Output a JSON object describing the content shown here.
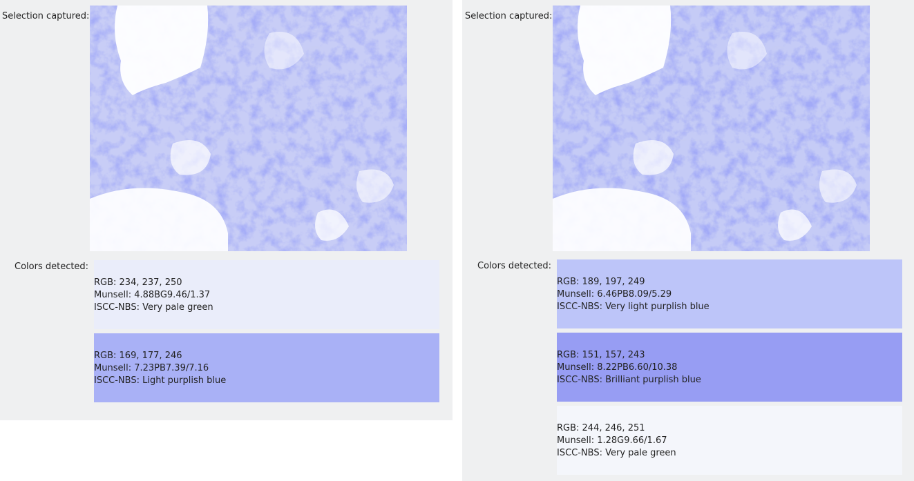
{
  "panels": [
    {
      "selection_label": "Selection captured:",
      "colors_label": "Colors detected:",
      "colors": [
        {
          "bg": "#eaedfa",
          "rgb": "RGB: 234, 237, 250",
          "munsell": "Munsell: 4.88BG9.46/1.37",
          "iscc": "ISCC-NBS: Very pale green"
        },
        {
          "bg": "#a9b1f6",
          "rgb": "RGB: 169, 177, 246",
          "munsell": "Munsell: 7.23PB7.39/7.16",
          "iscc": "ISCC-NBS: Light purplish blue"
        }
      ]
    },
    {
      "selection_label": "Selection captured:",
      "colors_label": "Colors detected:",
      "colors": [
        {
          "bg": "#bdc5f9",
          "rgb": "RGB: 189, 197, 249",
          "munsell": "Munsell: 6.46PB8.09/5.29",
          "iscc": "ISCC-NBS: Very light purplish blue"
        },
        {
          "bg": "#979df3",
          "rgb": "RGB: 151, 157, 243",
          "munsell": "Munsell: 8.22PB6.60/10.38",
          "iscc": "ISCC-NBS: Brilliant purplish blue"
        },
        {
          "bg": "#f4f6fb",
          "rgb": "RGB: 244, 246, 251",
          "munsell": "Munsell: 1.28G9.66/1.67",
          "iscc": "ISCC-NBS: Very pale green"
        }
      ]
    }
  ]
}
